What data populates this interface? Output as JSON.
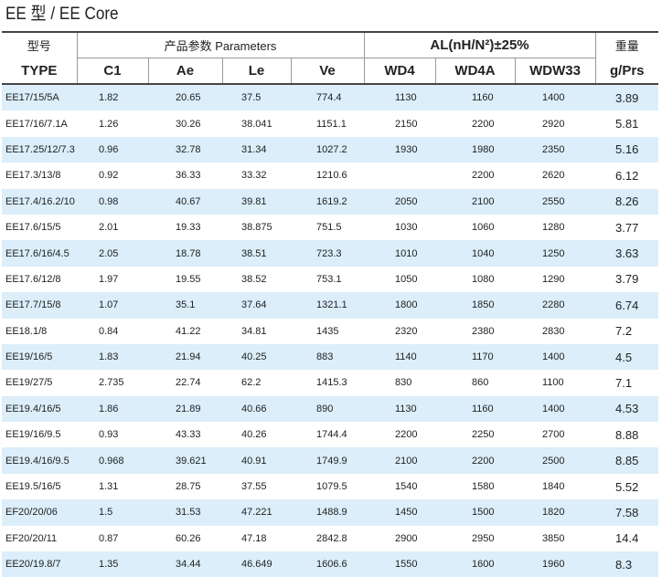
{
  "header": {
    "title": "EE 型  / EE Core"
  },
  "table": {
    "group_headers": [
      "型号",
      "产品参数  Parameters",
      "AL(nH/N²)±25%",
      "重量"
    ],
    "columns": [
      "TYPE",
      "C1",
      "Ae",
      "Le",
      "Ve",
      "WD4",
      "WD4A",
      "WDW33",
      "g/Prs"
    ],
    "rows": [
      [
        "EE17/15/5A",
        "1.82",
        "20.65",
        "37.5",
        "774.4",
        "1130",
        "1160",
        "1400",
        "3.89"
      ],
      [
        "EE17/16/7.1A",
        "1.26",
        "30.26",
        "38.041",
        "1151.1",
        "2150",
        "2200",
        "2920",
        "5.81"
      ],
      [
        "EE17.25/12/7.3",
        "0.96",
        "32.78",
        "31.34",
        "1027.2",
        "1930",
        "1980",
        "2350",
        "5.16"
      ],
      [
        "EE17.3/13/8",
        "0.92",
        "36.33",
        "33.32",
        "1210.6",
        null,
        "2200",
        "2620",
        "6.12"
      ],
      [
        "EE17.4/16.2/10",
        "0.98",
        "40.67",
        "39.81",
        "1619.2",
        "2050",
        "2100",
        "2550",
        "8.26"
      ],
      [
        "EE17.6/15/5",
        "2.01",
        "19.33",
        "38.875",
        "751.5",
        "1030",
        "1060",
        "1280",
        "3.77"
      ],
      [
        "EE17.6/16/4.5",
        "2.05",
        "18.78",
        "38.51",
        "723.3",
        "1010",
        "1040",
        "1250",
        "3.63"
      ],
      [
        "EE17.6/12/8",
        "1.97",
        "19.55",
        "38.52",
        "753.1",
        "1050",
        "1080",
        "1290",
        "3.79"
      ],
      [
        "EE17.7/15/8",
        "1.07",
        "35.1",
        "37.64",
        "1321.1",
        "1800",
        "1850",
        "2280",
        "6.74"
      ],
      [
        "EE18.1/8",
        "0.84",
        "41.22",
        "34.81",
        "1435",
        "2320",
        "2380",
        "2830",
        "7.2"
      ],
      [
        "EE19/16/5",
        "1.83",
        "21.94",
        "40.25",
        "883",
        "1140",
        "1170",
        "1400",
        "4.5"
      ],
      [
        "EE19/27/5",
        "2.735",
        "22.74",
        "62.2",
        "1415.3",
        "830",
        "860",
        "1100",
        "7.1"
      ],
      [
        "EE19.4/16/5",
        "1.86",
        "21.89",
        "40.66",
        "890",
        "1130",
        "1160",
        "1400",
        "4.53"
      ],
      [
        "EE19/16/9.5",
        "0.93",
        "43.33",
        "40.26",
        "1744.4",
        "2200",
        "2250",
        "2700",
        "8.88"
      ],
      [
        "EE19.4/16/9.5",
        "0.968",
        "39.621",
        "40.91",
        "1749.9",
        "2100",
        "2200",
        "2500",
        "8.85"
      ],
      [
        "EE19.5/16/5",
        "1.31",
        "28.75",
        "37.55",
        "1079.5",
        "1540",
        "1580",
        "1840",
        "5.52"
      ],
      [
        "EF20/20/06",
        "1.5",
        "31.53",
        "47.221",
        "1488.9",
        "1450",
        "1500",
        "1820",
        "7.58"
      ],
      [
        "EF20/20/11",
        "0.87",
        "60.26",
        "47.18",
        "2842.8",
        "2900",
        "2950",
        "3850",
        "14.4"
      ],
      [
        "EE20/19.8/7",
        "1.35",
        "34.44",
        "46.649",
        "1606.6",
        "1550",
        "1600",
        "1960",
        "8.3"
      ]
    ]
  }
}
